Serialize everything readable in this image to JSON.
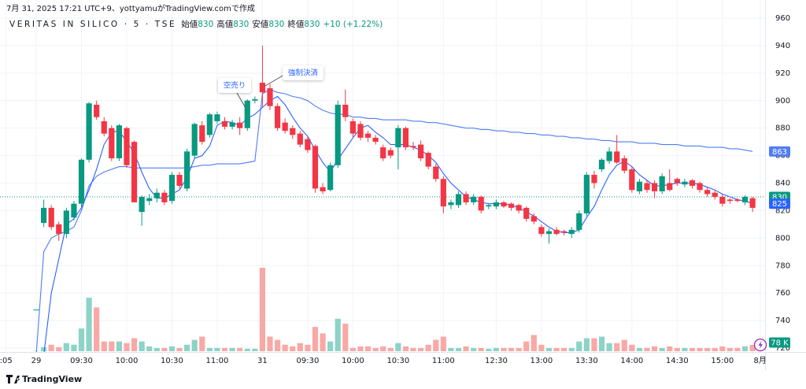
{
  "chart_data": {
    "type": "candlestick",
    "caption": "7月 31, 2025 17:21 UTC+9、yottyamuがTradingView.comで作成",
    "title": "VERITAS IN SILICO · 5 · TSE",
    "ohlc_legend": [
      {
        "label": "始値",
        "value": 830
      },
      {
        "label": "高値",
        "value": 830
      },
      {
        "label": "安値",
        "value": 830
      },
      {
        "label": "終値",
        "value": 830
      }
    ],
    "change": "+10 (+1.22%)",
    "annotations": [
      "空売り",
      "強制決済"
    ],
    "brand": "TradingView",
    "ylim": [
      720,
      960
    ],
    "yticks": [
      720,
      740,
      760,
      780,
      800,
      820,
      840,
      860,
      880,
      900,
      920,
      940,
      960
    ],
    "grid": true,
    "up_color": "#089981",
    "down_color": "#f23645",
    "volume_up_color": "#8dd3c7",
    "volume_down_color": "#f8a9a6",
    "last_price": 830,
    "last_volume": {
      "value": 78,
      "label": "78 K"
    },
    "categories": [
      ":05",
      null,
      null,
      null,
      "29",
      null,
      null,
      null,
      null,
      null,
      "09:30",
      null,
      null,
      null,
      null,
      null,
      "10:00",
      null,
      null,
      null,
      null,
      null,
      "10:30",
      null,
      null,
      null,
      null,
      null,
      "11:00",
      null,
      null,
      null,
      null,
      null,
      "31",
      null,
      null,
      null,
      null,
      null,
      "09:30",
      null,
      null,
      null,
      null,
      null,
      "10:00",
      null,
      null,
      null,
      null,
      null,
      "10:30",
      null,
      null,
      null,
      null,
      null,
      "11:00",
      null,
      null,
      null,
      null,
      null,
      null,
      "12:30",
      null,
      null,
      null,
      null,
      null,
      "13:00",
      null,
      null,
      null,
      null,
      null,
      "13:30",
      null,
      null,
      null,
      null,
      null,
      "14:00",
      null,
      null,
      null,
      null,
      null,
      "14:30",
      null,
      null,
      null,
      null,
      null,
      "15:00",
      null,
      null,
      null,
      null,
      "8月"
    ],
    "candles": [
      null,
      null,
      null,
      null,
      [
        748,
        748,
        748,
        748
      ],
      [
        811,
        828,
        808,
        822
      ],
      [
        822,
        824,
        806,
        808
      ],
      [
        810,
        812,
        798,
        803
      ],
      [
        803,
        822,
        800,
        820
      ],
      [
        815,
        827,
        813,
        825
      ],
      [
        825,
        858,
        823,
        857
      ],
      [
        857,
        899,
        855,
        898
      ],
      [
        897,
        900,
        886,
        888
      ],
      [
        885,
        888,
        874,
        876
      ],
      [
        880,
        882,
        856,
        858
      ],
      [
        858,
        883,
        856,
        882
      ],
      [
        880,
        881,
        851,
        853
      ],
      [
        870,
        871,
        826,
        826
      ],
      [
        819,
        831,
        809,
        830
      ],
      [
        827,
        832,
        824,
        829
      ],
      [
        829,
        836,
        826,
        833
      ],
      [
        833,
        835,
        824,
        826
      ],
      [
        827,
        848,
        825,
        846
      ],
      [
        846,
        848,
        836,
        838
      ],
      [
        836,
        865,
        834,
        863
      ],
      [
        860,
        884,
        858,
        883
      ],
      [
        882,
        885,
        868,
        870
      ],
      [
        875,
        891,
        873,
        890
      ],
      [
        885,
        892,
        883,
        890
      ],
      [
        885,
        888,
        879,
        881
      ],
      [
        881,
        886,
        879,
        884
      ],
      [
        884,
        888,
        875,
        880
      ],
      [
        880,
        901,
        878,
        900
      ],
      [
        900,
        903,
        898,
        901
      ],
      [
        913,
        940,
        895,
        906
      ],
      [
        909,
        912,
        893,
        896
      ],
      [
        896,
        898,
        878,
        880
      ],
      [
        884,
        887,
        876,
        878
      ],
      [
        880,
        882,
        872,
        875
      ],
      [
        876,
        878,
        866,
        868
      ],
      [
        872,
        874,
        862,
        864
      ],
      [
        867,
        868,
        833,
        836
      ],
      [
        837,
        840,
        832,
        834
      ],
      [
        835,
        855,
        834,
        853
      ],
      [
        853,
        900,
        851,
        897
      ],
      [
        897,
        908,
        885,
        888
      ],
      [
        885,
        887,
        873,
        876
      ],
      [
        883,
        885,
        871,
        873
      ],
      [
        876,
        878,
        870,
        873
      ],
      [
        873,
        875,
        868,
        870
      ],
      [
        866,
        868,
        856,
        858
      ],
      [
        864,
        866,
        858,
        860
      ],
      [
        866,
        882,
        850,
        880
      ],
      [
        880,
        881,
        864,
        866
      ],
      [
        867,
        870,
        864,
        866
      ],
      [
        868,
        871,
        856,
        858
      ],
      [
        862,
        863,
        850,
        852
      ],
      [
        852,
        854,
        841,
        843
      ],
      [
        843,
        845,
        818,
        823
      ],
      [
        824,
        828,
        821,
        826
      ],
      [
        824,
        834,
        822,
        832
      ],
      [
        832,
        834,
        824,
        826
      ],
      [
        826,
        832,
        824,
        830
      ],
      [
        830,
        831,
        818,
        820
      ],
      [
        823,
        825,
        821,
        824
      ],
      [
        823,
        828,
        821,
        826
      ],
      [
        826,
        827,
        822,
        823
      ],
      [
        825,
        826,
        820,
        822
      ],
      [
        824,
        825,
        818,
        820
      ],
      [
        822,
        823,
        812,
        814
      ],
      [
        816,
        818,
        810,
        812
      ],
      [
        808,
        810,
        801,
        803
      ],
      [
        803,
        807,
        796,
        805
      ],
      [
        806,
        808,
        802,
        803
      ],
      [
        805,
        806,
        802,
        804
      ],
      [
        803,
        808,
        800,
        806
      ],
      [
        806,
        820,
        804,
        818
      ],
      [
        818,
        848,
        816,
        846
      ],
      [
        846,
        849,
        836,
        840
      ],
      [
        850,
        858,
        848,
        857
      ],
      [
        856,
        866,
        854,
        863
      ],
      [
        863,
        875,
        854,
        855
      ],
      [
        858,
        860,
        847,
        849
      ],
      [
        850,
        852,
        833,
        835
      ],
      [
        834,
        843,
        832,
        841
      ],
      [
        840,
        842,
        833,
        835
      ],
      [
        840,
        842,
        829,
        834
      ],
      [
        834,
        847,
        832,
        845
      ],
      [
        840,
        850,
        834,
        835
      ],
      [
        843,
        844,
        838,
        840
      ],
      [
        839,
        843,
        837,
        841
      ],
      [
        842,
        843,
        836,
        838
      ],
      [
        840,
        841,
        833,
        835
      ],
      [
        835,
        837,
        830,
        832
      ],
      [
        833,
        835,
        828,
        830
      ],
      [
        830,
        832,
        823,
        825
      ],
      [
        828,
        829,
        825,
        827
      ],
      [
        828,
        829,
        826,
        827
      ],
      [
        826,
        831,
        824,
        830
      ],
      [
        829,
        830,
        819,
        822
      ],
      null
    ],
    "volume": [
      null,
      null,
      null,
      null,
      5,
      50,
      80,
      50,
      100,
      80,
      280,
      660,
      540,
      120,
      120,
      120,
      100,
      160,
      120,
      60,
      40,
      40,
      60,
      40,
      80,
      140,
      180,
      40,
      40,
      40,
      40,
      40,
      30,
      30,
      1030,
      180,
      140,
      80,
      60,
      100,
      80,
      300,
      220,
      120,
      400,
      340,
      40,
      60,
      60,
      40,
      60,
      40,
      100,
      60,
      40,
      40,
      80,
      140,
      180,
      40,
      40,
      60,
      40,
      40,
      30,
      40,
      40,
      40,
      40,
      120,
      200,
      80,
      40,
      40,
      40,
      40,
      120,
      160,
      160,
      180,
      100,
      100,
      140,
      80,
      40,
      40,
      60,
      40,
      60,
      40,
      40,
      40,
      40,
      40,
      40,
      60,
      40,
      40,
      60,
      78,
      null
    ],
    "series": [
      {
        "color": "#4f7df5",
        "values": [
          null,
          null,
          null,
          null,
          715,
          790,
          800,
          803,
          805,
          808,
          820,
          838,
          845,
          848,
          850,
          852,
          852,
          851,
          851,
          851,
          851,
          851,
          851,
          851,
          851,
          852,
          853,
          853,
          854,
          854,
          854,
          854,
          855,
          856,
          905,
          908,
          906,
          905,
          903,
          902,
          900,
          896,
          893,
          891,
          890,
          890,
          888,
          888,
          887,
          887,
          886,
          886,
          886,
          886,
          885,
          885,
          884,
          884,
          883,
          882,
          881,
          880,
          880,
          879,
          879,
          878,
          878,
          877,
          877,
          876,
          876,
          875,
          875,
          874,
          874,
          873,
          873,
          872,
          872,
          871,
          871,
          870,
          870,
          870,
          869,
          869,
          869,
          868,
          868,
          868,
          867,
          867,
          867,
          866,
          866,
          866,
          865,
          865,
          864,
          863,
          null
        ]
      },
      {
        "color": "#2962ff",
        "values": [
          null,
          null,
          null,
          null,
          null,
          715,
          760,
          785,
          810,
          814,
          822,
          835,
          850,
          868,
          877,
          878,
          870,
          862,
          848,
          836,
          829,
          829,
          832,
          835,
          844,
          858,
          860,
          867,
          882,
          885,
          884,
          882,
          887,
          890,
          895,
          900,
          903,
          897,
          888,
          880,
          874,
          864,
          855,
          848,
          857,
          865,
          873,
          880,
          882,
          877,
          873,
          868,
          868,
          868,
          866,
          864,
          860,
          855,
          847,
          840,
          835,
          830,
          828,
          826,
          825,
          825,
          825,
          824,
          822,
          819,
          816,
          812,
          808,
          805,
          804,
          804,
          806,
          815,
          823,
          835,
          846,
          853,
          856,
          852,
          846,
          842,
          838,
          838,
          839,
          840,
          840,
          840,
          839,
          837,
          835,
          832,
          830,
          828,
          827,
          825,
          null
        ]
      }
    ]
  }
}
